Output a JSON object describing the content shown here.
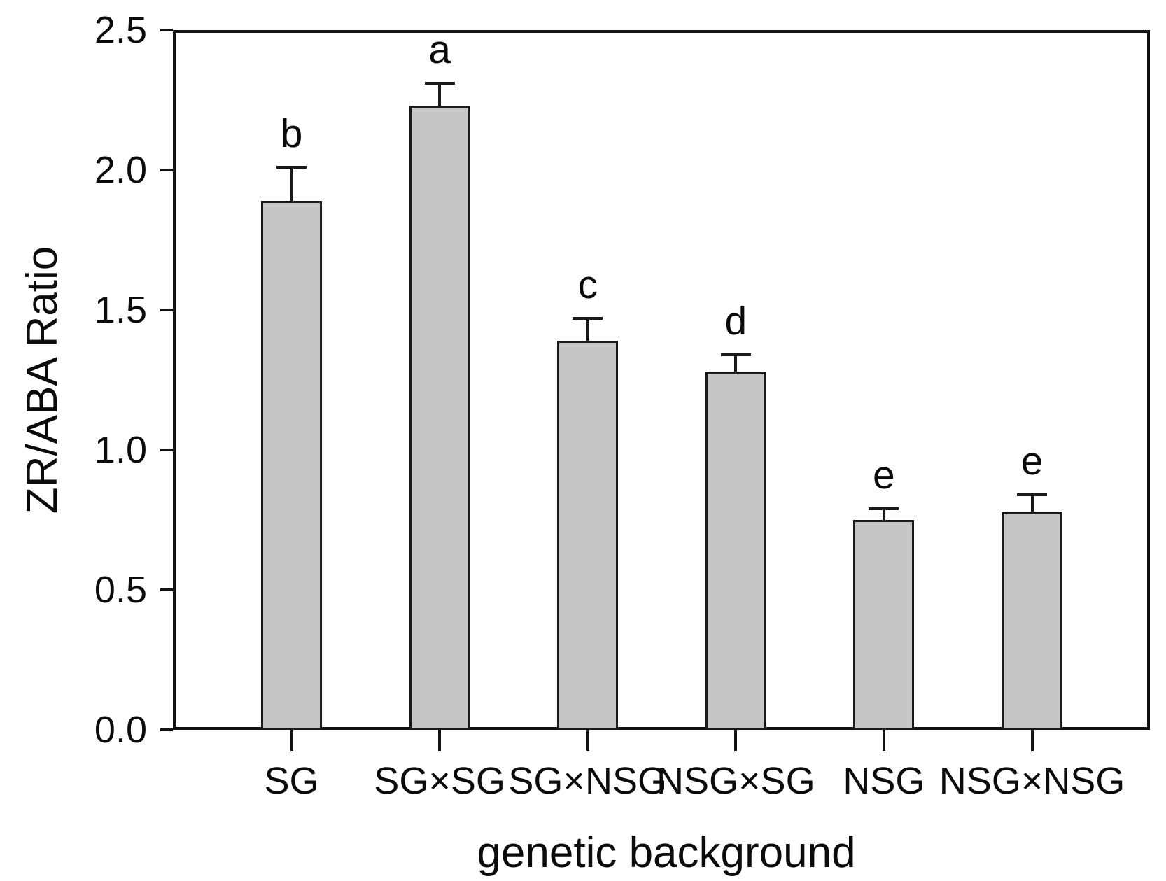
{
  "chart_data": {
    "type": "bar",
    "title": "",
    "xlabel": "genetic background",
    "ylabel": "ZR/ABA Ratio",
    "categories": [
      "SG",
      "SG×SG",
      "SG×NSG",
      "NSG×SG",
      "NSG",
      "NSG×NSG"
    ],
    "values": [
      1.89,
      2.23,
      1.39,
      1.28,
      0.75,
      0.78
    ],
    "error_bars": [
      0.12,
      0.08,
      0.08,
      0.06,
      0.04,
      0.06
    ],
    "sig_letters": [
      "b",
      "a",
      "c",
      "d",
      "e",
      "e"
    ],
    "ylim": [
      0.0,
      2.5
    ],
    "yticks": [
      "0.0",
      "0.5",
      "1.0",
      "1.5",
      "2.0",
      "2.5"
    ],
    "grid": false,
    "legend": "none",
    "bar_fill_color": "#c6c6c6",
    "bar_border_color": "#1a1a1a",
    "axis_color": "#121212",
    "background_color": "#ffffff"
  }
}
